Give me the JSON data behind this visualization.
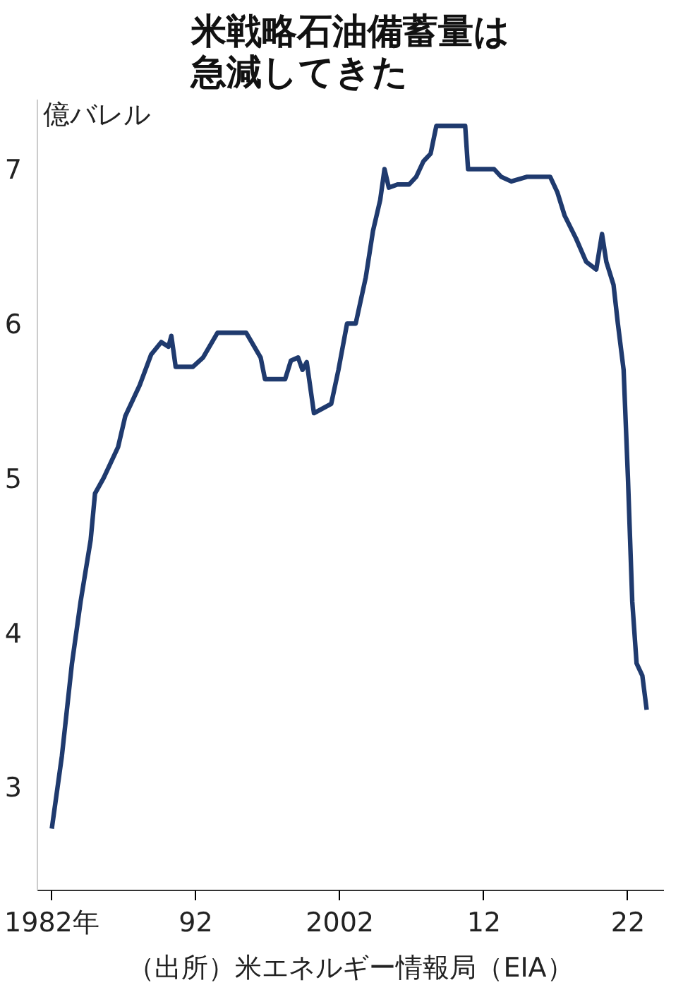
{
  "chart_data": {
    "type": "line",
    "title": "米戦略石油備蓄量は急減してきた",
    "ylabel": "億バレル",
    "annotations": [
      "（出所）米エネルギー情報局（EIA）"
    ],
    "x": [
      1982.0,
      1982.7,
      1983.4,
      1984.0,
      1984.7,
      1985.0,
      1985.6,
      1986.6,
      1987.1,
      1988.1,
      1988.9,
      1989.6,
      1990.1,
      1990.3,
      1990.6,
      1991.8,
      1992.5,
      1993.5,
      1995.5,
      1996.5,
      1996.8,
      1998.2,
      1998.6,
      1999.1,
      1999.4,
      1999.7,
      2000.2,
      2001.4,
      2001.9,
      2002.5,
      2003.1,
      2003.8,
      2004.3,
      2004.8,
      2005.1,
      2005.4,
      2006.0,
      2006.8,
      2007.3,
      2007.8,
      2008.3,
      2008.7,
      2010.7,
      2010.9,
      2012.7,
      2013.2,
      2013.9,
      2015.0,
      2016.6,
      2017.1,
      2017.6,
      2018.4,
      2019.1,
      2019.8,
      2020.2,
      2020.5,
      2021.0,
      2021.3,
      2021.7,
      2022.0,
      2022.3,
      2022.6,
      2023.0,
      2023.3
    ],
    "series": [
      {
        "color": "#1f3a6e",
        "values": [
          2.73,
          3.2,
          3.8,
          4.2,
          4.6,
          4.9,
          5.0,
          5.2,
          5.4,
          5.6,
          5.8,
          5.88,
          5.85,
          5.92,
          5.72,
          5.72,
          5.78,
          5.94,
          5.94,
          5.78,
          5.64,
          5.64,
          5.76,
          5.78,
          5.7,
          5.75,
          5.42,
          5.48,
          5.7,
          6.0,
          6.0,
          6.3,
          6.6,
          6.8,
          7.0,
          6.88,
          6.9,
          6.9,
          6.95,
          7.05,
          7.1,
          7.28,
          7.28,
          7.0,
          7.0,
          6.95,
          6.92,
          6.95,
          6.95,
          6.85,
          6.7,
          6.55,
          6.4,
          6.35,
          6.58,
          6.4,
          6.25,
          6.0,
          5.7,
          5.0,
          4.2,
          3.8,
          3.72,
          3.5
        ]
      }
    ],
    "xlim": [
      1981,
      2024.5
    ],
    "ylim": [
      2.33,
      7.45
    ],
    "xticks": [
      {
        "value": 1982,
        "label": "1982年"
      },
      {
        "value": 1992,
        "label": "92"
      },
      {
        "value": 2002,
        "label": "2002"
      },
      {
        "value": 2012,
        "label": "12"
      },
      {
        "value": 2022,
        "label": "22"
      }
    ],
    "yticks": [
      3,
      4,
      5,
      6,
      7
    ],
    "grid": false,
    "line_style": "solid",
    "marker": "none"
  }
}
